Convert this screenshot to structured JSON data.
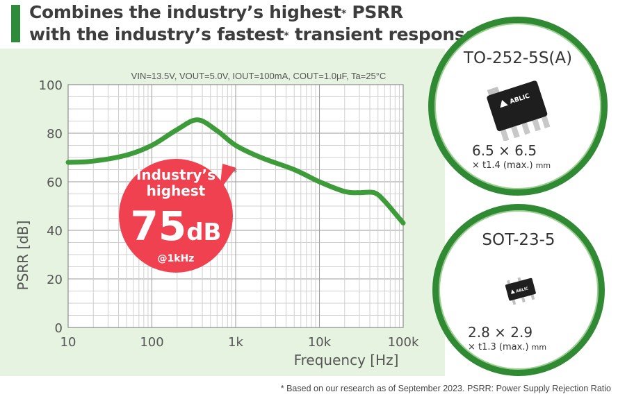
{
  "header": {
    "title_line1_a": "Combines the industry’s highest",
    "title_line1_star": "*",
    "title_line1_b": " PSRR",
    "title_line2_a": "with the industry’s fastest",
    "title_line2_star": "*",
    "title_line2_b": " transient response"
  },
  "conditions": "VIN=13.5V, VOUT=5.0V, IOUT=100mA, COUT=1.0µF, Ta=25°C",
  "callout": {
    "line1": "Industry’s",
    "line2": "highest",
    "value": "75",
    "unit": "dB",
    "at": "@1kHz",
    "star": "*"
  },
  "footnote": "* Based on our research as of September 2023.  PSRR: Power Supply Rejection Ratio",
  "packages": [
    {
      "name": "TO-252-5S(A)",
      "dims": "6.5 × 6.5",
      "thickness": "× t1.4 (max.)",
      "unit": "mm",
      "brand": "ABLIC"
    },
    {
      "name": "SOT-23-5",
      "dims": "2.8 × 2.9",
      "thickness": "× t1.3 (max.)",
      "unit": "mm",
      "brand": "ABLIC"
    }
  ],
  "colors": {
    "curve": "#3e9b3a",
    "callout": "#ef4150",
    "panel": "#e6f3e0",
    "accent": "#2e8b3a"
  },
  "chart_data": {
    "type": "line",
    "title": "",
    "xlabel": "Frequency [Hz]",
    "ylabel": "PSRR [dB]",
    "x_scale": "log",
    "xlim": [
      10,
      100000
    ],
    "ylim": [
      0,
      100
    ],
    "x_ticks": [
      10,
      100,
      1000,
      10000,
      100000
    ],
    "x_tick_labels": [
      "10",
      "100",
      "1k",
      "10k",
      "100k"
    ],
    "y_ticks": [
      0,
      20,
      40,
      60,
      80,
      100
    ],
    "y_tick_labels": [
      "0",
      "20",
      "40",
      "60",
      "80",
      "100"
    ],
    "grid": true,
    "series": [
      {
        "name": "",
        "x": [
          10,
          20,
          50,
          100,
          200,
          350,
          600,
          1000,
          2000,
          5000,
          10000,
          20000,
          30000,
          45000,
          60000,
          100000
        ],
        "values": [
          68,
          68.5,
          71,
          75,
          81.5,
          85.5,
          81,
          75,
          70,
          65,
          60,
          56,
          55.5,
          55.5,
          52,
          43
        ]
      }
    ]
  }
}
